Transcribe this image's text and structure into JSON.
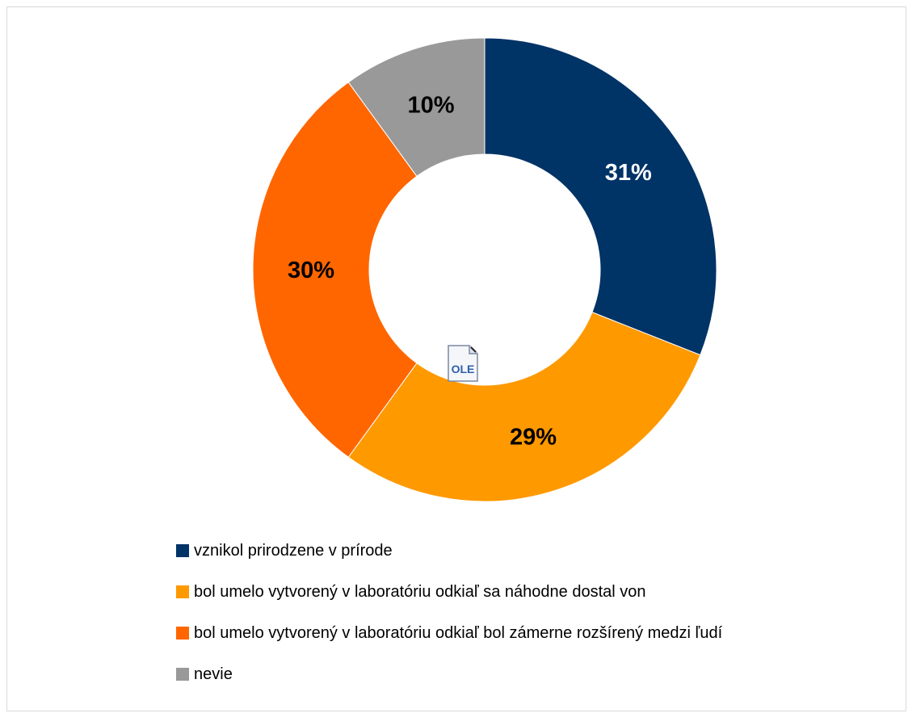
{
  "chart_data": {
    "type": "pie",
    "variant": "donut",
    "title": "",
    "categories": [
      "vznikol prirodzene v prírode",
      "bol umelo vytvorený v laboratóriu odkiaľ sa náhodne dostal von",
      "bol umelo vytvorený v laboratóriu odkiaľ bol zámerne rozšírený medzi ľudí",
      "nevie"
    ],
    "values": [
      31,
      29,
      30,
      10
    ],
    "labels": [
      "31%",
      "29%",
      "30%",
      "10%"
    ],
    "colors": [
      "#003366",
      "#ff9900",
      "#ff6600",
      "#999999"
    ],
    "label_colors": [
      "#ffffff",
      "#000000",
      "#000000",
      "#000000"
    ],
    "legend_position": "bottom",
    "start_angle_deg": 0,
    "direction": "clockwise"
  },
  "icons": {
    "ole_placeholder": "ole-document-icon",
    "ole_text": "OLE"
  }
}
